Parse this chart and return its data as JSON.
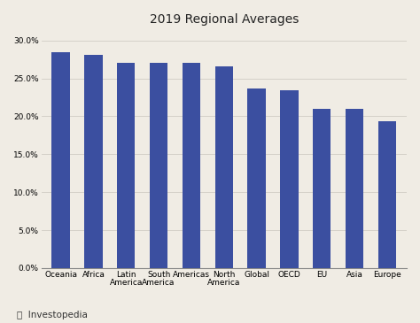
{
  "title": "2019 Regional Averages",
  "categories": [
    "Oceania",
    "Africa",
    "Latin\nAmerica",
    "South\nAmerica",
    "Americas",
    "North\nAmerica",
    "Global",
    "OECD",
    "EU",
    "Asia",
    "Europe"
  ],
  "values": [
    0.284,
    0.281,
    0.27,
    0.27,
    0.27,
    0.266,
    0.237,
    0.234,
    0.21,
    0.21,
    0.194
  ],
  "bar_color": "#3b4fa0",
  "background_color": "#f0ece4",
  "grid_color": "#d0ccc4",
  "title_fontsize": 10,
  "tick_fontsize": 6.5,
  "ylim": [
    0,
    0.31
  ],
  "yticks": [
    0.0,
    0.05,
    0.1,
    0.15,
    0.2,
    0.25,
    0.3
  ],
  "bar_width": 0.55,
  "logo_text": "⭯  Investopedia"
}
